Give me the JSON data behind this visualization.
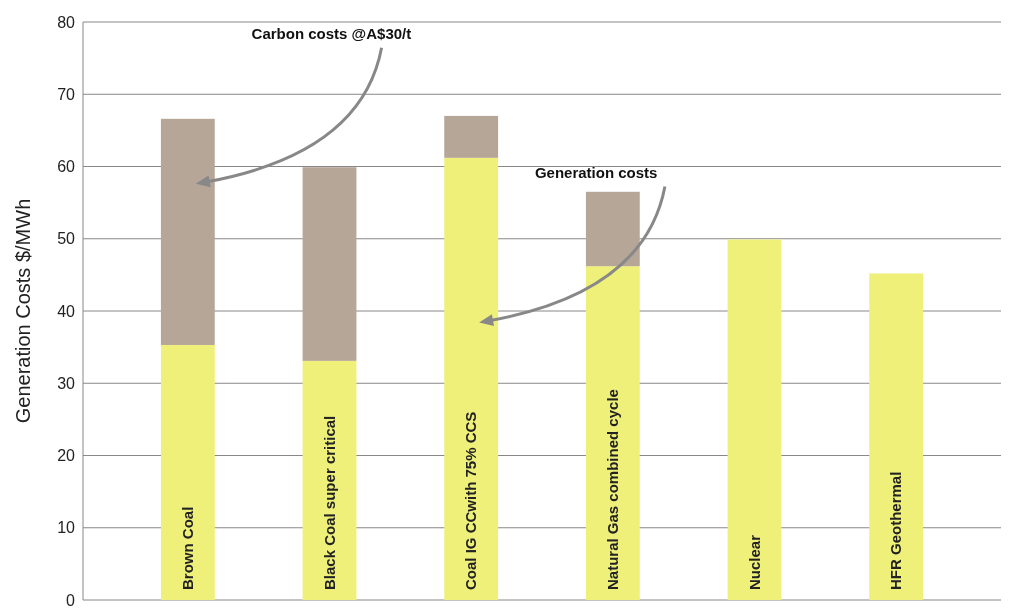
{
  "chart_data": {
    "type": "bar",
    "stacked": true,
    "ylabel": "Generation Costs $/MWh",
    "categories": [
      "Brown Coal",
      "Black Coal super critical",
      "Coal IG CCwith 75% CCS",
      "Natural Gas combined cycle",
      "Nuclear",
      "HFR Geothermal"
    ],
    "series": [
      {
        "color": "#eef07a",
        "values": [
          35.3,
          33.1,
          61.2,
          46.2,
          49.9,
          45.2
        ]
      },
      {
        "color": "#b5a698",
        "values": [
          31.3,
          26.8,
          5.8,
          10.3,
          null,
          null
        ]
      }
    ],
    "ylim": [
      0,
      80
    ],
    "yticks": [
      0,
      10,
      20,
      30,
      40,
      50,
      60,
      70,
      80
    ],
    "grid": "y",
    "annotations": [
      "Carbon costs @A$30/t",
      "Generation costs"
    ]
  }
}
